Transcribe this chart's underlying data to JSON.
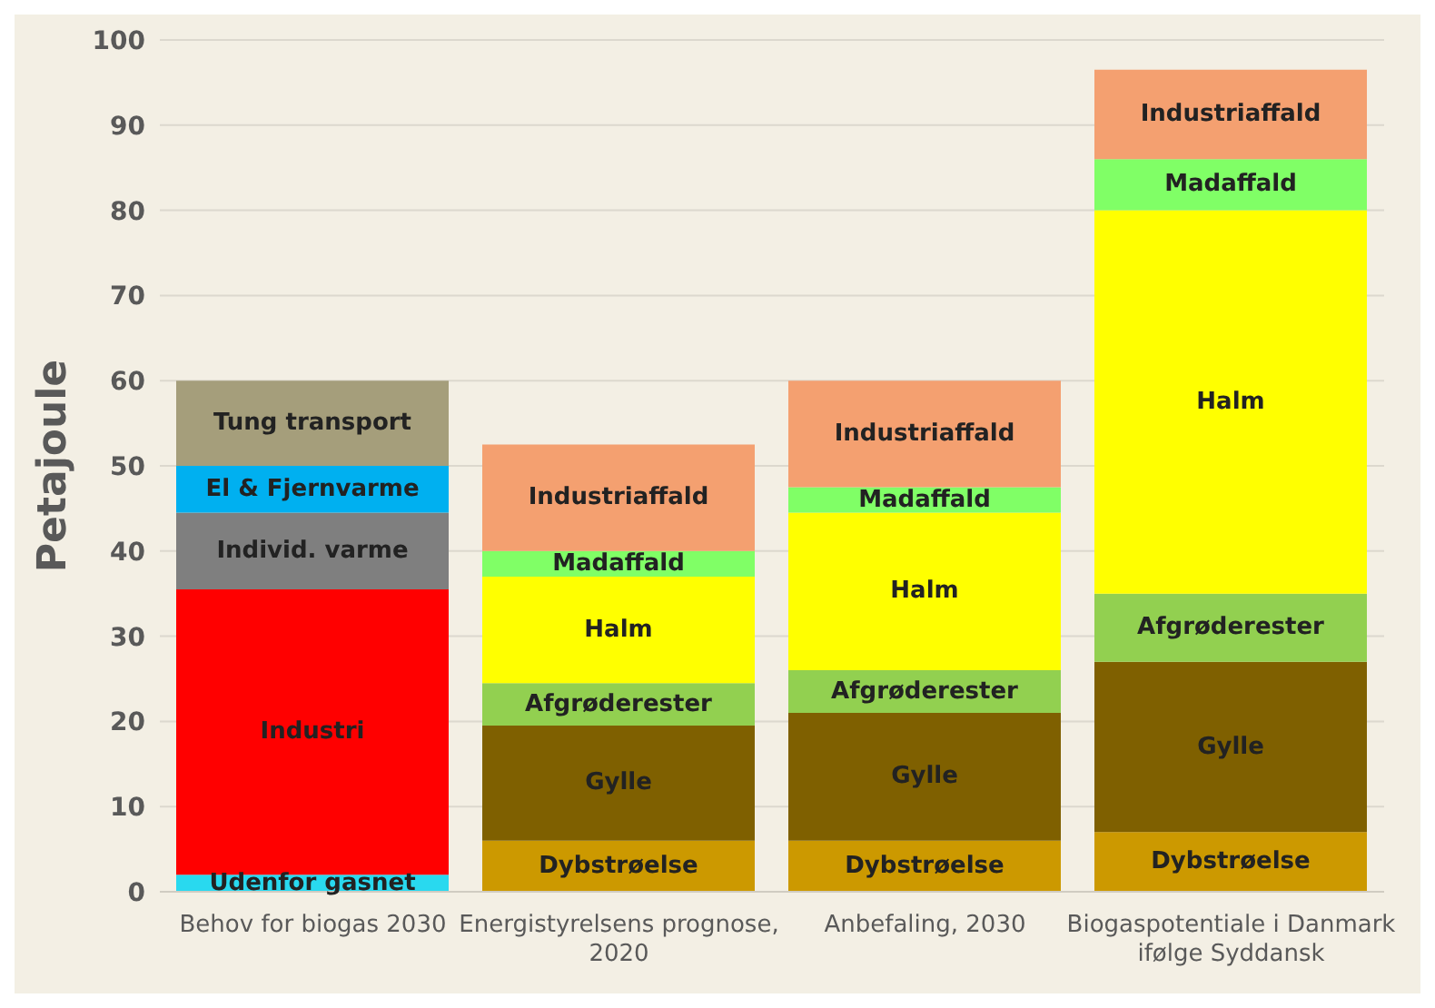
{
  "chart_data": {
    "type": "bar",
    "stacked": true,
    "ylabel": "Petajoule",
    "categories": [
      "Behov for biogas 2030",
      "Energistyrelsens prognose, 2020",
      "Anbefaling, 2030",
      "Biogaspotentiale i Danmark ifølge Syddansk"
    ],
    "series": [
      {
        "name": "Udenfor gasnet",
        "color": "#29d9ef",
        "values": [
          2,
          null,
          null,
          null
        ]
      },
      {
        "name": "Industri",
        "color": "#ff0000",
        "values": [
          33.5,
          null,
          null,
          null
        ]
      },
      {
        "name": "Individ. varme",
        "color": "#7f7f7f",
        "values": [
          9,
          null,
          null,
          null
        ]
      },
      {
        "name": "El & Fjernvarme",
        "color": "#00b0f0",
        "values": [
          5.5,
          null,
          null,
          null
        ]
      },
      {
        "name": "Tung transport",
        "color": "#a59e7b",
        "values": [
          10,
          null,
          null,
          null
        ]
      },
      {
        "name": "Dybstrøelse",
        "color": "#cc9900",
        "values": [
          null,
          6,
          6,
          7
        ]
      },
      {
        "name": "Gylle",
        "color": "#7f6000",
        "values": [
          null,
          13.5,
          15,
          20
        ]
      },
      {
        "name": "Afgrøderester",
        "color": "#92d050",
        "values": [
          null,
          5,
          5,
          8
        ]
      },
      {
        "name": "Halm",
        "color": "#ffff00",
        "values": [
          null,
          12.5,
          18.5,
          45
        ]
      },
      {
        "name": "Madaffald",
        "color": "#80ff66",
        "values": [
          null,
          3,
          3,
          6
        ]
      },
      {
        "name": "Industriaffald",
        "color": "#f4a070",
        "values": [
          null,
          12.5,
          12.5,
          10.5
        ]
      }
    ],
    "ylim": [
      0,
      100
    ],
    "yticks": [
      0,
      10,
      20,
      30,
      40,
      50,
      60,
      70,
      80,
      90,
      100
    ],
    "grid": "y",
    "legend": false
  }
}
